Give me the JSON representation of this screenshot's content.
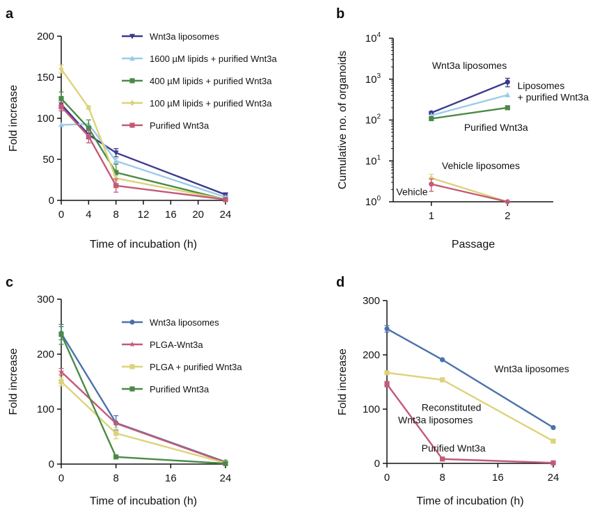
{
  "chart_data": [
    {
      "id": "a",
      "panel_label": "a",
      "type": "line",
      "xlabel": "Time of incubation (h)",
      "ylabel": "Fold increase",
      "xlim": [
        0,
        24
      ],
      "ylim": [
        0,
        200
      ],
      "xticks": [
        0,
        4,
        8,
        12,
        16,
        20,
        24
      ],
      "yticks": [
        0,
        50,
        100,
        150,
        200
      ],
      "legend": "top-right",
      "series": [
        {
          "name": "Wnt3a liposomes",
          "color": "#3a3a8c",
          "marker": "triangle-down",
          "x": [
            0,
            4,
            8,
            24
          ],
          "y": [
            117,
            80,
            58,
            7
          ],
          "err": [
            8,
            5,
            5,
            1
          ]
        },
        {
          "name": "1600 µM lipids + purified Wnt3a",
          "color": "#9ccbe8",
          "marker": "triangle",
          "x": [
            0,
            4,
            8,
            24
          ],
          "y": [
            92,
            93,
            48,
            4
          ],
          "err": [
            0,
            0,
            3,
            1
          ]
        },
        {
          "name": "400 µM lipids + purified Wnt3a",
          "color": "#4a8a46",
          "marker": "square",
          "x": [
            0,
            4,
            8,
            24
          ],
          "y": [
            124,
            88,
            34,
            1
          ],
          "err": [
            8,
            10,
            10,
            1
          ]
        },
        {
          "name": "100 µM lipids + purified Wnt3a",
          "color": "#ddd27a",
          "marker": "diamond",
          "x": [
            0,
            4,
            8,
            24
          ],
          "y": [
            160,
            113,
            27,
            1
          ],
          "err": [
            5,
            2,
            3,
            1
          ]
        },
        {
          "name": "Purified Wnt3a",
          "color": "#c25a78",
          "marker": "square",
          "x": [
            0,
            4,
            8,
            24
          ],
          "y": [
            114,
            78,
            18,
            1
          ],
          "err": [
            5,
            8,
            8,
            1
          ]
        }
      ],
      "annotations": []
    },
    {
      "id": "b",
      "panel_label": "b",
      "type": "line",
      "xlabel": "Passage",
      "ylabel": "Cumulative no. of organoids",
      "yscale": "log",
      "xlim": [
        0.5,
        2.6
      ],
      "ylim": [
        1,
        10000
      ],
      "xticks": [
        1,
        2
      ],
      "yticks": [
        1,
        10,
        100,
        1000,
        10000
      ],
      "ytick_labels": [
        {
          "base": "10",
          "exp": "0"
        },
        {
          "base": "10",
          "exp": "1"
        },
        {
          "base": "10",
          "exp": "2"
        },
        {
          "base": "10",
          "exp": "3"
        },
        {
          "base": "10",
          "exp": "4"
        }
      ],
      "series": [
        {
          "color": "#3a3a8c",
          "marker": "circle",
          "x": [
            1,
            2
          ],
          "y": [
            150,
            850
          ],
          "err_up": [
            12,
            200
          ],
          "err_down": [
            12,
            200
          ]
        },
        {
          "color": "#9ccbe8",
          "marker": "triangle",
          "x": [
            1,
            2
          ],
          "y": [
            130,
            410
          ],
          "err_up": [
            0,
            0
          ],
          "err_down": [
            0,
            0
          ]
        },
        {
          "color": "#4a8a46",
          "marker": "square",
          "x": [
            1,
            2
          ],
          "y": [
            108,
            200
          ],
          "err_up": [
            0,
            0
          ],
          "err_down": [
            0,
            0
          ]
        },
        {
          "color": "#ddd27a",
          "marker": "diamond",
          "x": [
            1,
            2
          ],
          "y": [
            3.8,
            1
          ],
          "err_up": [
            0.9,
            0
          ],
          "err_down": [
            0.9,
            0
          ]
        },
        {
          "color": "#c25a78",
          "marker": "circle",
          "x": [
            1,
            2
          ],
          "y": [
            2.7,
            1
          ],
          "err_up": [
            0.9,
            0
          ],
          "err_down": [
            0.9,
            0
          ]
        }
      ],
      "annotations": [
        {
          "text": "Wnt3a liposomes",
          "x": 1.5,
          "y": 1800,
          "anchor": "middle"
        },
        {
          "text": "Liposomes",
          "x": 2.13,
          "y": 570,
          "anchor": "start"
        },
        {
          "text": "+ purified Wnt3a",
          "x": 2.13,
          "y": 300,
          "anchor": "start"
        },
        {
          "text": "Purified Wnt3a",
          "x": 1.43,
          "y": 55,
          "anchor": "start"
        },
        {
          "text": "Vehicle liposomes",
          "x": 1.65,
          "y": 6.3,
          "anchor": "middle"
        },
        {
          "text": "Vehicle",
          "x": 0.54,
          "y": 1.45,
          "anchor": "start"
        }
      ]
    },
    {
      "id": "c",
      "panel_label": "c",
      "type": "line",
      "xlabel": "Time of incubation (h)",
      "ylabel": "Fold increase",
      "xlim": [
        0,
        24
      ],
      "ylim": [
        0,
        300
      ],
      "xticks": [
        0,
        8,
        16,
        24
      ],
      "yticks": [
        0,
        100,
        200,
        300
      ],
      "legend": "top-right",
      "series": [
        {
          "name": "Wnt3a liposomes",
          "color": "#4a72aa",
          "marker": "circle",
          "x": [
            0,
            8,
            24
          ],
          "y": [
            238,
            75,
            4
          ],
          "err": [
            12,
            13,
            1
          ]
        },
        {
          "name": "PLGA-Wnt3a",
          "color": "#c25a78",
          "marker": "star",
          "x": [
            0,
            8,
            24
          ],
          "y": [
            168,
            74,
            3
          ],
          "err": [
            6,
            2,
            1
          ]
        },
        {
          "name": "PLGA + purified Wnt3a",
          "color": "#ddd27a",
          "marker": "square",
          "x": [
            0,
            8,
            24
          ],
          "y": [
            150,
            56,
            2
          ],
          "err": [
            8,
            10,
            1
          ]
        },
        {
          "name": "Purified Wnt3a",
          "color": "#4a8a46",
          "marker": "square",
          "x": [
            0,
            8,
            24
          ],
          "y": [
            236,
            13,
            1
          ],
          "err": [
            18,
            1,
            1
          ]
        }
      ],
      "annotations": []
    },
    {
      "id": "d",
      "panel_label": "d",
      "type": "line",
      "xlabel": "Time of incubation (h)",
      "ylabel": "Fold increase",
      "xlim": [
        0,
        24
      ],
      "ylim": [
        0,
        300
      ],
      "xticks": [
        0,
        8,
        16,
        24
      ],
      "yticks": [
        0,
        100,
        200,
        300
      ],
      "series": [
        {
          "color": "#4a72aa",
          "marker": "circle",
          "x": [
            0,
            8,
            24
          ],
          "y": [
            248,
            191,
            66
          ],
          "err": [
            6,
            1,
            1
          ]
        },
        {
          "color": "#ddd27a",
          "marker": "square",
          "x": [
            0,
            8,
            24
          ],
          "y": [
            167,
            154,
            41
          ],
          "err": [
            0,
            1,
            1
          ]
        },
        {
          "color": "#c25a78",
          "marker": "square",
          "x": [
            0,
            8,
            24
          ],
          "y": [
            146,
            8,
            1
          ],
          "err": [
            5,
            1,
            1
          ]
        }
      ],
      "annotations": [
        {
          "text": "Wnt3a liposomes",
          "x": 15.5,
          "y": 168,
          "anchor": "start"
        },
        {
          "text": "Reconstituted",
          "x": 5.0,
          "y": 97,
          "anchor": "start"
        },
        {
          "text": "Wnt3a liposomes",
          "x": 7.0,
          "y": 74,
          "anchor": "middle"
        },
        {
          "text": "Purified Wnt3a",
          "x": 9.6,
          "y": 22,
          "anchor": "middle"
        }
      ]
    }
  ]
}
